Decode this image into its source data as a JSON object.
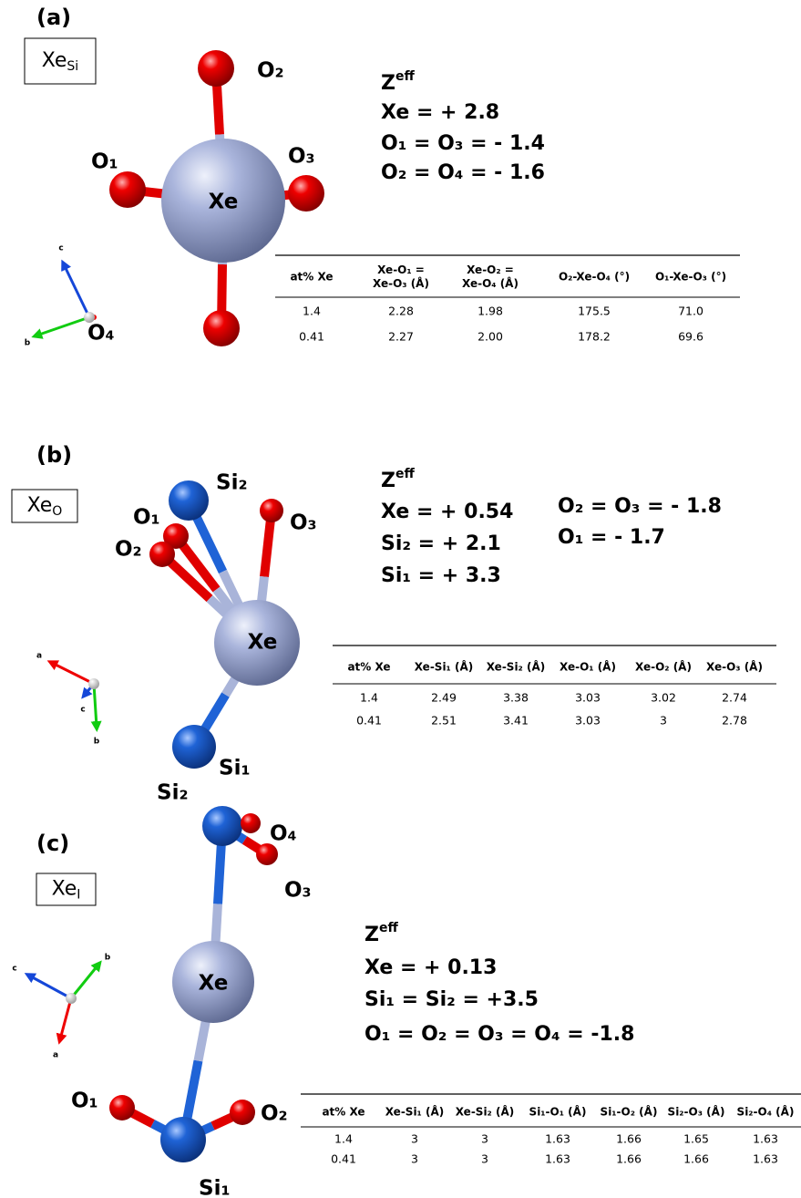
{
  "panels": [
    {
      "label": "(a)",
      "site": {
        "base": "Xe",
        "sub": "Si"
      },
      "atoms": [
        "O₂",
        "O₁",
        "O₃",
        "Xe",
        "O₄"
      ],
      "axes": [
        "c",
        "b"
      ],
      "zeff": {
        "base": "Z",
        "sup": "eff"
      },
      "charges": [
        "Xe = + 2.8",
        "O₁ = O₃ = - 1.4",
        "O₂ = O₄ = - 1.6"
      ],
      "table": {
        "header": [
          [
            "at% Xe"
          ],
          [
            "Xe-O₁ =",
            "Xe-O₃ (Å)"
          ],
          [
            "Xe-O₂ =",
            "Xe-O₄ (Å)"
          ],
          [
            "O₂-Xe-O₄ (°)"
          ],
          [
            "O₁-Xe-O₃ (°)"
          ]
        ],
        "rows": [
          [
            "1.4",
            "2.28",
            "1.98",
            "175.5",
            "71.0"
          ],
          [
            "0.41",
            "2.27",
            "2.00",
            "178.2",
            "69.6"
          ]
        ]
      }
    },
    {
      "label": "(b)",
      "site": {
        "base": "Xe",
        "sub": "O"
      },
      "atoms": [
        "Si₂",
        "O₁",
        "O₂",
        "O₃",
        "Xe",
        "Si₁"
      ],
      "axes": [
        "a",
        "c",
        "b"
      ],
      "zeff": {
        "base": "Z",
        "sup": "eff"
      },
      "charges": [
        "Xe = + 0.54",
        "Si₂ = + 2.1",
        "Si₁ = + 3.3",
        "O₂ = O₃ = - 1.8",
        "O₁ = - 1.7"
      ],
      "table": {
        "header": [
          [
            "at% Xe"
          ],
          [
            "Xe-Si₁ (Å)"
          ],
          [
            "Xe-Si₂ (Å)"
          ],
          [
            "Xe-O₁ (Å)"
          ],
          [
            "Xe-O₂ (Å)"
          ],
          [
            "Xe-O₃ (Å)"
          ]
        ],
        "rows": [
          [
            "1.4",
            "2.49",
            "3.38",
            "3.03",
            "3.02",
            "2.74"
          ],
          [
            "0.41",
            "2.51",
            "3.41",
            "3.03",
            "3",
            "2.78"
          ]
        ]
      }
    },
    {
      "label": "(c)",
      "site": {
        "base": "Xe",
        "sub": "I"
      },
      "atoms": [
        "Si₂",
        "O₄",
        "O₃",
        "Xe",
        "O₁",
        "O₂",
        "Si₁"
      ],
      "axes": [
        "c",
        "b",
        "a"
      ],
      "zeff": {
        "base": "Z",
        "sup": "eff"
      },
      "charges": [
        "Xe = + 0.13",
        "Si₁ = Si₂ = +3.5",
        "O₁ = O₂ = O₃ = O₄ = -1.8"
      ],
      "table": {
        "header": [
          [
            "at% Xe"
          ],
          [
            "Xe-Si₁ (Å)"
          ],
          [
            "Xe-Si₂ (Å)"
          ],
          [
            "Si₁-O₁ (Å)"
          ],
          [
            "Si₁-O₂ (Å)"
          ],
          [
            "Si₂-O₃ (Å)"
          ],
          [
            "Si₂-O₄ (Å)"
          ]
        ],
        "rows": [
          [
            "1.4",
            "3",
            "3",
            "1.63",
            "1.66",
            "1.65",
            "1.63"
          ],
          [
            "0.41",
            "3",
            "3",
            "1.63",
            "1.66",
            "1.66",
            "1.63"
          ]
        ]
      }
    }
  ]
}
